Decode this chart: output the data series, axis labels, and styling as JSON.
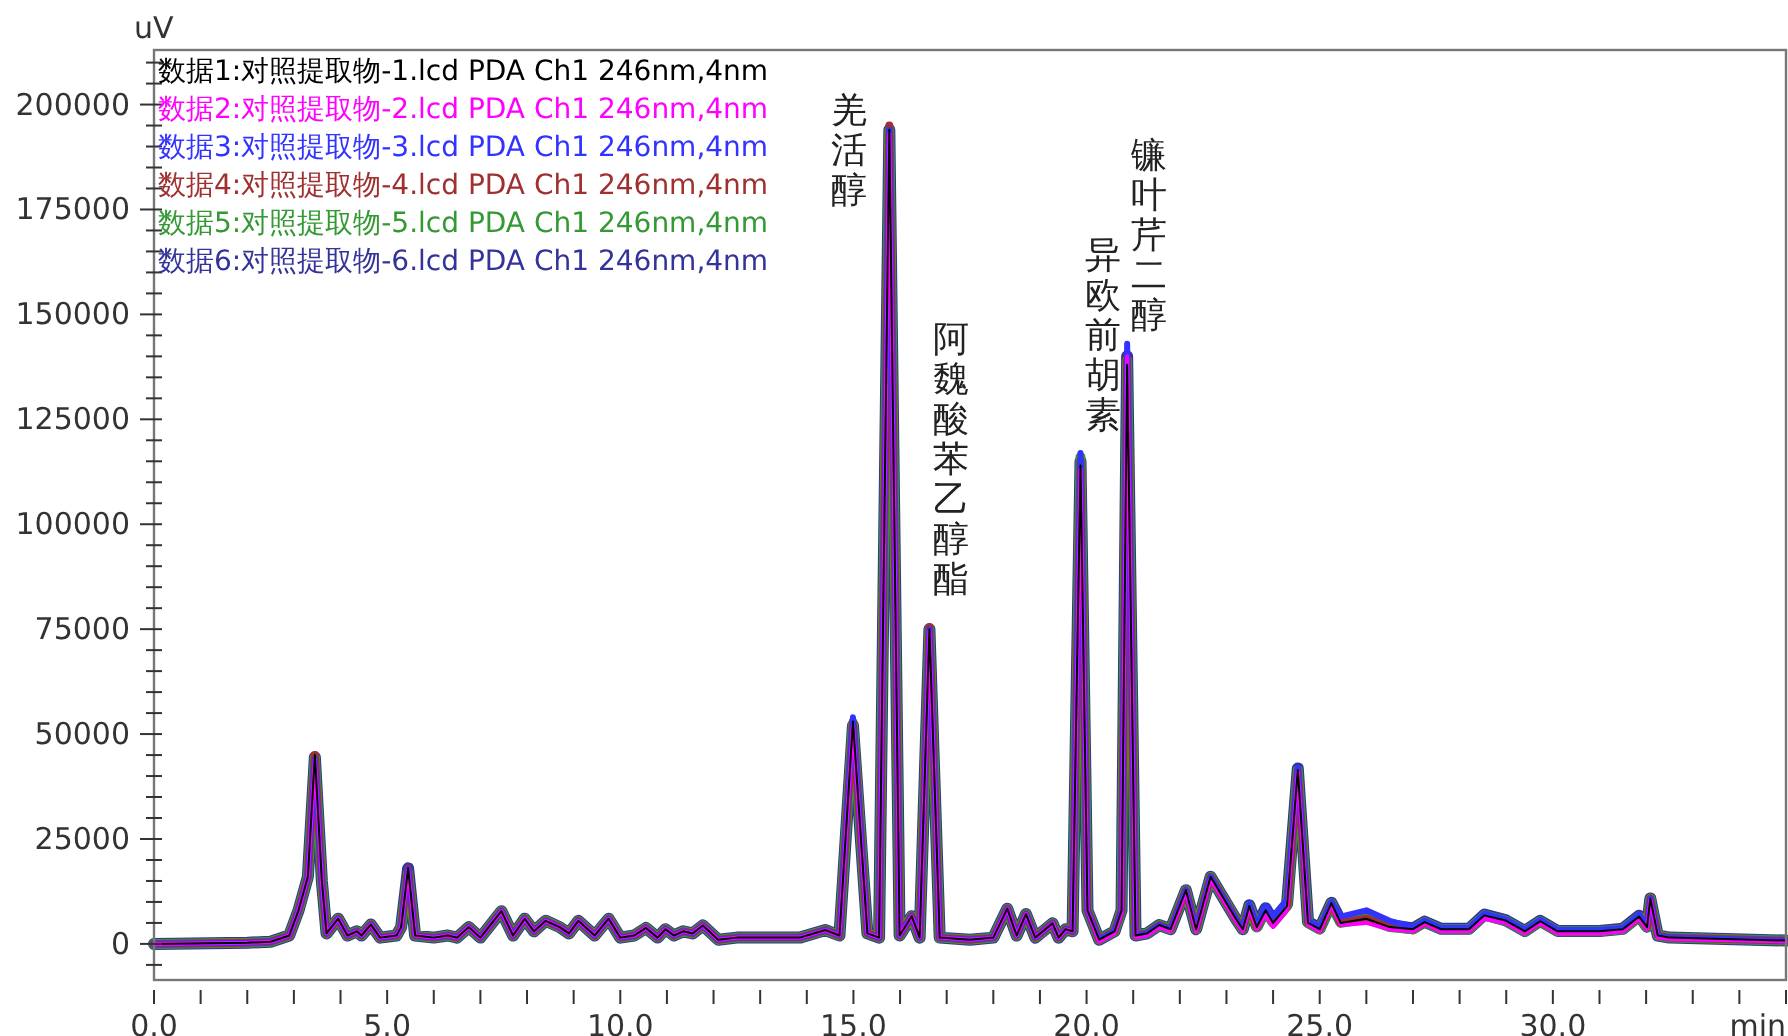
{
  "chart_data": {
    "type": "line",
    "xlabel": "min",
    "ylabel": "uV",
    "legend": "top left",
    "grid": false,
    "line_style": "solid",
    "marker": "none",
    "xlim": [
      0,
      35
    ],
    "ylim": [
      -8600,
      213000
    ],
    "xticks": [
      {
        "value": 0,
        "label": "0.0"
      },
      {
        "value": 1,
        "label": null
      },
      {
        "value": 2,
        "label": null
      },
      {
        "value": 3,
        "label": null
      },
      {
        "value": 4,
        "label": null
      },
      {
        "value": 5,
        "label": "5.0"
      },
      {
        "value": 6,
        "label": null
      },
      {
        "value": 7,
        "label": null
      },
      {
        "value": 8,
        "label": null
      },
      {
        "value": 9,
        "label": null
      },
      {
        "value": 10,
        "label": "10.0"
      },
      {
        "value": 11,
        "label": null
      },
      {
        "value": 12,
        "label": null
      },
      {
        "value": 13,
        "label": null
      },
      {
        "value": 14,
        "label": null
      },
      {
        "value": 15,
        "label": "15.0"
      },
      {
        "value": 16,
        "label": null
      },
      {
        "value": 17,
        "label": null
      },
      {
        "value": 18,
        "label": null
      },
      {
        "value": 19,
        "label": null
      },
      {
        "value": 20,
        "label": "20.0"
      },
      {
        "value": 21,
        "label": null
      },
      {
        "value": 22,
        "label": null
      },
      {
        "value": 23,
        "label": null
      },
      {
        "value": 24,
        "label": null
      },
      {
        "value": 25,
        "label": "25.0"
      },
      {
        "value": 26,
        "label": null
      },
      {
        "value": 27,
        "label": null
      },
      {
        "value": 28,
        "label": null
      },
      {
        "value": 29,
        "label": null
      },
      {
        "value": 30,
        "label": "30.0"
      },
      {
        "value": 31,
        "label": null
      },
      {
        "value": 32,
        "label": null
      },
      {
        "value": 33,
        "label": null
      },
      {
        "value": 34,
        "label": null
      },
      {
        "value": 35,
        "label": null
      }
    ],
    "yticks": [
      {
        "value": -5000,
        "label": null
      },
      0,
      {
        "value": 5000,
        "label": null
      },
      {
        "value": 10000,
        "label": null
      },
      {
        "value": 15000,
        "label": null
      },
      {
        "value": 20000,
        "label": null
      },
      25000,
      {
        "value": 30000,
        "label": null
      },
      {
        "value": 35000,
        "label": null
      },
      {
        "value": 40000,
        "label": null
      },
      {
        "value": 45000,
        "label": null
      },
      50000,
      {
        "value": 55000,
        "label": null
      },
      {
        "value": 60000,
        "label": null
      },
      {
        "value": 65000,
        "label": null
      },
      {
        "value": 70000,
        "label": null
      },
      75000,
      {
        "value": 80000,
        "label": null
      },
      {
        "value": 85000,
        "label": null
      },
      {
        "value": 90000,
        "label": null
      },
      {
        "value": 95000,
        "label": null
      },
      100000,
      {
        "value": 105000,
        "label": null
      },
      {
        "value": 110000,
        "label": null
      },
      {
        "value": 115000,
        "label": null
      },
      {
        "value": 120000,
        "label": null
      },
      125000,
      {
        "value": 130000,
        "label": null
      },
      {
        "value": 135000,
        "label": null
      },
      {
        "value": 140000,
        "label": null
      },
      {
        "value": 145000,
        "label": null
      },
      150000,
      {
        "value": 155000,
        "label": null
      },
      {
        "value": 160000,
        "label": null
      },
      {
        "value": 165000,
        "label": null
      },
      {
        "value": 170000,
        "label": null
      },
      175000,
      {
        "value": 180000,
        "label": null
      },
      {
        "value": 185000,
        "label": null
      },
      {
        "value": 190000,
        "label": null
      },
      {
        "value": 195000,
        "label": null
      },
      200000,
      {
        "value": 205000,
        "label": null
      },
      {
        "value": 210000,
        "label": null
      }
    ],
    "x": [
      0,
      2.0,
      2.5,
      2.9,
      3.1,
      3.3,
      3.45,
      3.6,
      3.7,
      3.95,
      4.15,
      4.35,
      4.45,
      4.65,
      4.85,
      5.2,
      5.3,
      5.45,
      5.6,
      6.0,
      6.3,
      6.5,
      6.75,
      7.0,
      7.45,
      7.7,
      7.95,
      8.15,
      8.4,
      8.7,
      8.9,
      9.1,
      9.45,
      9.75,
      10.0,
      10.3,
      10.55,
      10.8,
      10.97,
      11.15,
      11.35,
      11.55,
      11.77,
      12.1,
      12.5,
      13.0,
      13.85,
      14.4,
      14.7,
      14.99,
      15.3,
      15.55,
      15.77,
      15.99,
      16.25,
      16.42,
      16.63,
      16.85,
      17.5,
      18.0,
      18.3,
      18.5,
      18.7,
      18.9,
      19.27,
      19.4,
      19.55,
      19.7,
      19.87,
      20.02,
      20.27,
      20.6,
      20.75,
      20.87,
      21.05,
      21.3,
      21.56,
      21.8,
      22.13,
      22.35,
      22.66,
      23.2,
      23.35,
      23.49,
      23.65,
      23.84,
      24.0,
      24.3,
      24.53,
      24.75,
      25.0,
      25.25,
      25.45,
      26.0,
      26.5,
      27.0,
      27.25,
      27.6,
      28.2,
      28.53,
      29.0,
      29.4,
      29.73,
      30.1,
      31.0,
      31.5,
      31.85,
      32.02,
      32.09,
      32.25,
      32.5,
      35.0
    ],
    "series": [
      {
        "name": "数据1:对照提取物-1.lcd PDA Ch1 246nm,4nm",
        "color": "#000000",
        "values": [
          0,
          300,
          500,
          2000,
          8000,
          16000,
          45000,
          15000,
          2500,
          6000,
          2000,
          3000,
          2000,
          4600,
          1500,
          2000,
          4000,
          18000,
          2000,
          1500,
          2000,
          1500,
          4000,
          1500,
          7800,
          2000,
          6000,
          3000,
          5500,
          4000,
          2500,
          5500,
          2000,
          6000,
          1500,
          2000,
          3800,
          1500,
          3500,
          2000,
          3000,
          2500,
          4400,
          1000,
          1500,
          1500,
          1500,
          3300,
          2000,
          53000,
          2500,
          1500,
          194000,
          2000,
          6600,
          1500,
          75000,
          1500,
          1000,
          1500,
          8400,
          2000,
          7100,
          1500,
          4900,
          1500,
          3500,
          3000,
          114000,
          8000,
          1000,
          3000,
          8000,
          138000,
          2000,
          2500,
          4500,
          3500,
          12800,
          3500,
          16000,
          6000,
          3500,
          9000,
          4000,
          8000,
          5000,
          9000,
          41400,
          5000,
          3500,
          9700,
          5000,
          6000,
          4000,
          3500,
          5200,
          3500,
          3500,
          6800,
          5500,
          3000,
          5400,
          3000,
          3000,
          3500,
          6500,
          4000,
          10800,
          2000,
          1500,
          800
        ]
      },
      {
        "name": "数据2:对照提取物-2.lcd PDA Ch1 246nm,4nm",
        "color": "#ff00ff",
        "values": [
          0,
          300,
          500,
          2000,
          8000,
          16000,
          44000,
          15000,
          2500,
          6000,
          2000,
          3000,
          2000,
          4600,
          1500,
          2000,
          4000,
          17500,
          2000,
          1500,
          2000,
          1500,
          4000,
          1500,
          7800,
          2000,
          6000,
          3000,
          5500,
          4000,
          2500,
          5500,
          2000,
          6000,
          1500,
          2000,
          3800,
          1500,
          3500,
          2000,
          3000,
          2500,
          4400,
          1000,
          1500,
          1500,
          1500,
          3300,
          2000,
          52000,
          2500,
          1500,
          193000,
          2000,
          6600,
          1500,
          74500,
          1500,
          1000,
          1500,
          8400,
          2000,
          7100,
          1500,
          4900,
          1500,
          3500,
          3000,
          113000,
          8000,
          500,
          2500,
          7500,
          140000,
          1500,
          2000,
          4000,
          3000,
          12300,
          3000,
          15500,
          5500,
          3000,
          8500,
          3500,
          7000,
          4000,
          8000,
          41000,
          4500,
          3000,
          9200,
          4500,
          5000,
          3500,
          3000,
          4800,
          3000,
          3000,
          6000,
          5000,
          2500,
          5000,
          2500,
          2500,
          3000,
          6000,
          3500,
          10500,
          1500,
          1200,
          600
        ]
      },
      {
        "name": "数据3:对照提取物-3.lcd PDA Ch1 246nm,4nm",
        "color": "#3333ff",
        "values": [
          0,
          300,
          500,
          2000,
          8000,
          16000,
          44000,
          15000,
          2500,
          6000,
          2000,
          3000,
          2000,
          4600,
          1500,
          2000,
          4000,
          18000,
          2000,
          1500,
          2000,
          1500,
          4000,
          1500,
          7800,
          2000,
          6000,
          3000,
          5500,
          4000,
          2500,
          5500,
          2000,
          6000,
          1500,
          2000,
          3800,
          1500,
          3500,
          2000,
          3000,
          2500,
          4400,
          1000,
          1500,
          1500,
          1500,
          3300,
          2000,
          54000,
          2500,
          1500,
          194000,
          2000,
          6600,
          1500,
          75000,
          1500,
          1000,
          1500,
          8400,
          2000,
          7100,
          1500,
          4900,
          1500,
          3500,
          3000,
          117000,
          8000,
          1000,
          3000,
          8000,
          143000,
          2000,
          2500,
          4500,
          3500,
          12800,
          3500,
          16000,
          6000,
          3500,
          9500,
          4500,
          9000,
          6500,
          10500,
          42000,
          5500,
          4000,
          10000,
          6500,
          8000,
          5500,
          4000,
          5500,
          3800,
          3800,
          7200,
          5800,
          3300,
          5700,
          3300,
          3300,
          3800,
          7000,
          4300,
          10800,
          2000,
          1500,
          800
        ]
      },
      {
        "name": "数据4:对照提取物-4.lcd PDA Ch1 246nm,4nm",
        "color": "#a03030",
        "values": [
          0,
          300,
          500,
          2000,
          8000,
          16000,
          45000,
          15000,
          2500,
          6000,
          2000,
          3000,
          2000,
          4600,
          1500,
          2000,
          4000,
          18000,
          2000,
          1500,
          2000,
          1500,
          4000,
          1500,
          7800,
          2000,
          6000,
          3000,
          5500,
          4000,
          2500,
          5500,
          2000,
          6000,
          1500,
          2000,
          3800,
          1500,
          3500,
          2000,
          3000,
          2500,
          4400,
          1000,
          1500,
          1500,
          1500,
          3300,
          2000,
          53000,
          2500,
          1500,
          195000,
          2000,
          6600,
          1500,
          75500,
          1500,
          1000,
          1500,
          8400,
          2000,
          7100,
          1500,
          4900,
          1500,
          3500,
          3000,
          115000,
          8000,
          1000,
          3000,
          8000,
          139000,
          2000,
          2500,
          4500,
          3500,
          12800,
          3500,
          16000,
          6000,
          3500,
          9000,
          4000,
          8000,
          5000,
          9000,
          41400,
          5000,
          3500,
          9700,
          5000,
          6000,
          4000,
          3500,
          5200,
          3500,
          3500,
          6800,
          5500,
          3000,
          5400,
          3000,
          3000,
          3500,
          6500,
          4000,
          10800,
          2000,
          1500,
          800
        ]
      },
      {
        "name": "数据5:对照提取物-5.lcd PDA Ch1 246nm,4nm",
        "color": "#339933",
        "values": [
          0,
          300,
          500,
          2000,
          8000,
          16000,
          44500,
          15000,
          2500,
          6000,
          2000,
          3000,
          2000,
          4600,
          1500,
          2000,
          4000,
          17000,
          2000,
          1500,
          2000,
          1500,
          4000,
          1500,
          7800,
          2000,
          6000,
          3000,
          5500,
          4000,
          2500,
          5500,
          2000,
          6000,
          1500,
          2000,
          3800,
          1500,
          3500,
          2000,
          3000,
          2500,
          4400,
          1000,
          1500,
          1500,
          1500,
          3300,
          2000,
          52500,
          2500,
          1500,
          194000,
          2000,
          6600,
          1500,
          75000,
          1500,
          1000,
          1500,
          8400,
          2000,
          7100,
          1500,
          4900,
          1500,
          3500,
          3000,
          116000,
          8000,
          1000,
          3000,
          8000,
          139000,
          2000,
          2500,
          4500,
          3500,
          12800,
          3500,
          16000,
          6000,
          3500,
          9000,
          4000,
          8000,
          5000,
          9000,
          41400,
          5000,
          3500,
          9700,
          5000,
          6000,
          4000,
          3500,
          5200,
          3500,
          3500,
          6800,
          5500,
          3000,
          5400,
          3000,
          3000,
          3500,
          6500,
          4000,
          10800,
          2000,
          1500,
          800
        ]
      },
      {
        "name": "数据6:对照提取物-6.lcd PDA Ch1 246nm,4nm",
        "color": "#333399",
        "values": [
          0,
          300,
          500,
          2000,
          8000,
          16000,
          44500,
          15000,
          2500,
          6000,
          2000,
          3000,
          2000,
          4600,
          1500,
          2000,
          4000,
          18000,
          2000,
          1500,
          2000,
          1500,
          4000,
          1500,
          7800,
          2000,
          6000,
          3000,
          5500,
          4000,
          2500,
          5500,
          2000,
          6000,
          1500,
          2000,
          3800,
          1500,
          3500,
          2000,
          3000,
          2500,
          4400,
          1000,
          1500,
          1500,
          1500,
          3300,
          2000,
          52000,
          2500,
          1500,
          194000,
          2000,
          6600,
          1500,
          75000,
          1500,
          1000,
          1500,
          8400,
          2000,
          7100,
          1500,
          4900,
          1500,
          3500,
          3000,
          115000,
          8000,
          1000,
          3000,
          8000,
          140000,
          2000,
          2500,
          4500,
          3500,
          12800,
          3500,
          16000,
          6000,
          3500,
          9200,
          4200,
          8500,
          5500,
          9500,
          41800,
          5200,
          3700,
          9800,
          5500,
          7000,
          4500,
          3700,
          5300,
          3600,
          3600,
          7000,
          5600,
          3100,
          5500,
          3100,
          3100,
          3600,
          6700,
          4100,
          10800,
          2000,
          1500,
          800
        ]
      }
    ],
    "annotations": [
      {
        "text": "羌活醇",
        "x": 15.77,
        "y": 194000
      },
      {
        "text": "阿魏酸苯乙醇酯",
        "x": 16.63,
        "y": 75000
      },
      {
        "text": "异欧前胡素",
        "x": 19.87,
        "y": 114000
      },
      {
        "text": "镰叶芹二醇",
        "x": 20.87,
        "y": 138000
      }
    ]
  }
}
